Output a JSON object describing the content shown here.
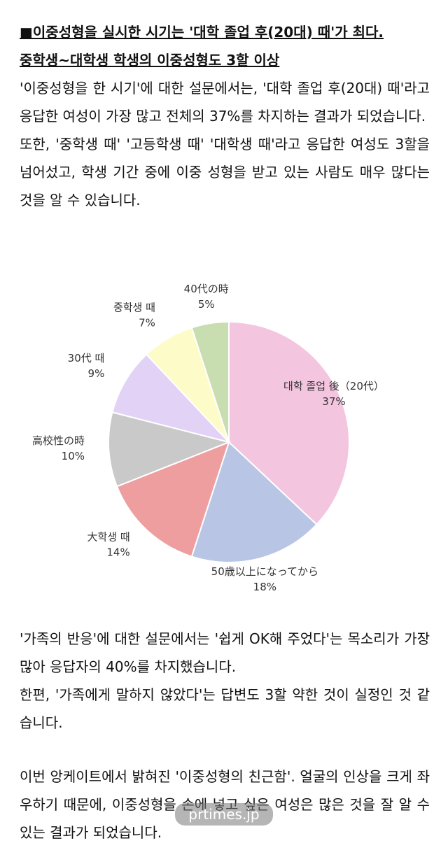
{
  "heading": [
    "■이중성형을 실시한 시기는 '대학 졸업 후(20대) 때'가 최다.",
    "중학생~대학생 학생의 이중성형도 3할 이상"
  ],
  "intro": [
    "'이중성형을 한 시기'에 대한 설문에서는, '대학 졸업 후(20대) 때'라고 응답한 여성이 가장 많고 전체의 37%를 차지하는 결과가 되었습니다.",
    "또한, '중학생 때' '고등학생 때' '대학생 때'라고 응답한 여성도 3할을 넘어섰고, 학생 기간 중에 이중 성형을 받고 있는 사람도 매우 많다는 것을 알 수 있습니다."
  ],
  "chart_data": {
    "type": "pie",
    "categories": [
      "대학 졸업 後（20代）",
      "50歳以上になってから",
      "大학생 때",
      "高校性の時",
      "30代 때",
      "중학생 때",
      "40代の時"
    ],
    "values": [
      37,
      18,
      14,
      10,
      9,
      7,
      5
    ],
    "value_labels": [
      "37%",
      "18%",
      "14%",
      "10%",
      "9%",
      "7%",
      "5%"
    ],
    "colors": [
      "#f4c5df",
      "#b8c5e4",
      "#ee9e9e",
      "#c9c9c9",
      "#e2d2f6",
      "#fdfbc8",
      "#c8ddb0"
    ]
  },
  "outro": [
    "'가족의 반응'에 대한 설문에서는 '쉽게 OK해 주었다'는 목소리가 가장 많아 응답자의 40%를 차지했습니다.",
    "한편, '가족에게 말하지 않았다'는 답변도 3할 약한 것이 실정인 것 같습니다."
  ],
  "closing": "이번 앙케이트에서 밝혀진 '이중성형의 친근함'. 얼굴의 인상을 크게 좌우하기 때문에, 이중성형을 손에 넣고 싶은 여성은 많은 것을 잘 알 수 있는 결과가 되었습니다.",
  "watermark": "prtimes.jp"
}
